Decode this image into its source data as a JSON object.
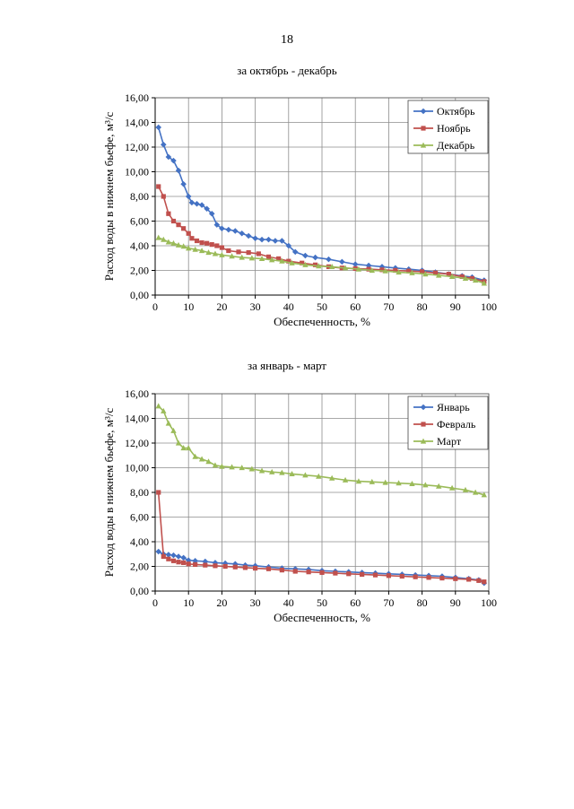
{
  "page": {
    "number": "18"
  },
  "chart_data": [
    {
      "type": "line",
      "title": "за октябрь - декабрь",
      "xlabel": "Обеспеченность, %",
      "ylabel": "Расход воды в нижнем бьефе, м³/с",
      "xlim": [
        0,
        100
      ],
      "ylim": [
        0,
        16
      ],
      "xticks": [
        0,
        10,
        20,
        30,
        40,
        50,
        60,
        70,
        80,
        90,
        100
      ],
      "yticks": [
        "0,00",
        "2,00",
        "4,00",
        "6,00",
        "8,00",
        "10,00",
        "12,00",
        "14,00",
        "16,00"
      ],
      "grid": true,
      "legend_position": "top-right",
      "series": [
        {
          "name": "Октябрь",
          "color": "#4472C4",
          "marker": "diamond",
          "x": [
            1,
            2.5,
            4,
            5.5,
            7,
            8.5,
            10,
            11,
            12.5,
            14,
            15.5,
            17,
            18.5,
            20,
            22,
            24,
            26,
            28,
            30,
            32,
            34,
            36,
            38,
            40,
            42,
            45,
            48,
            52,
            56,
            60,
            64,
            68,
            72,
            76,
            80,
            84,
            88,
            92,
            95,
            98.6
          ],
          "values": [
            13.6,
            12.2,
            11.2,
            10.9,
            10.1,
            9.0,
            8.0,
            7.5,
            7.4,
            7.3,
            7.0,
            6.6,
            5.7,
            5.4,
            5.3,
            5.2,
            5.0,
            4.8,
            4.6,
            4.5,
            4.5,
            4.4,
            4.4,
            4.0,
            3.5,
            3.2,
            3.05,
            2.9,
            2.7,
            2.5,
            2.4,
            2.3,
            2.2,
            2.1,
            2.0,
            1.85,
            1.7,
            1.55,
            1.45,
            1.2
          ]
        },
        {
          "name": "Ноябрь",
          "color": "#C0504D",
          "marker": "square",
          "x": [
            1,
            2.5,
            4,
            5.5,
            7,
            8.5,
            10,
            11,
            12.5,
            14,
            15.5,
            17,
            18.5,
            20,
            22,
            25,
            28,
            31,
            34,
            37,
            40,
            44,
            48,
            52,
            56,
            60,
            64,
            68,
            72,
            76,
            80,
            84,
            88,
            92,
            95,
            98.6
          ],
          "values": [
            8.8,
            8.0,
            6.6,
            6.0,
            5.7,
            5.4,
            5.0,
            4.6,
            4.4,
            4.25,
            4.2,
            4.1,
            4.0,
            3.85,
            3.6,
            3.5,
            3.45,
            3.35,
            3.1,
            2.95,
            2.75,
            2.6,
            2.45,
            2.3,
            2.2,
            2.15,
            2.1,
            2.05,
            2.0,
            1.95,
            1.9,
            1.8,
            1.7,
            1.5,
            1.35,
            1.1
          ]
        },
        {
          "name": "Декабрь",
          "color": "#9BBB59",
          "marker": "triangle",
          "x": [
            1,
            2.5,
            4,
            5.5,
            7,
            8.5,
            10,
            12,
            14,
            16,
            18,
            20,
            23,
            26,
            29,
            32,
            35,
            38,
            41,
            45,
            49,
            53,
            57,
            61,
            65,
            69,
            73,
            77,
            81,
            85,
            89,
            93,
            96,
            98.6
          ],
          "values": [
            4.65,
            4.5,
            4.3,
            4.2,
            4.05,
            3.95,
            3.8,
            3.7,
            3.6,
            3.45,
            3.35,
            3.25,
            3.15,
            3.05,
            3.0,
            2.95,
            2.85,
            2.75,
            2.6,
            2.45,
            2.35,
            2.3,
            2.2,
            2.1,
            2.0,
            1.95,
            1.85,
            1.8,
            1.7,
            1.6,
            1.5,
            1.35,
            1.2,
            0.95
          ]
        }
      ]
    },
    {
      "type": "line",
      "title": "за январь - март",
      "xlabel": "Обеспеченность, %",
      "ylabel": "Расход воды в нижнем бьефе, м³/с",
      "xlim": [
        0,
        100
      ],
      "ylim": [
        0,
        16
      ],
      "xticks": [
        0,
        10,
        20,
        30,
        40,
        50,
        60,
        70,
        80,
        90,
        100
      ],
      "yticks": [
        "0,00",
        "2,00",
        "4,00",
        "6,00",
        "8,00",
        "10,00",
        "12,00",
        "14,00",
        "16,00"
      ],
      "grid": true,
      "legend_position": "top-right",
      "series": [
        {
          "name": "Январь",
          "color": "#4472C4",
          "marker": "diamond",
          "x": [
            1,
            2.5,
            4,
            5.5,
            7,
            8.5,
            10,
            12,
            15,
            18,
            21,
            24,
            27,
            30,
            34,
            38,
            42,
            46,
            50,
            54,
            58,
            62,
            66,
            70,
            74,
            78,
            82,
            86,
            90,
            94,
            97,
            98.6
          ],
          "values": [
            3.2,
            3.0,
            2.95,
            2.9,
            2.8,
            2.7,
            2.5,
            2.45,
            2.4,
            2.3,
            2.25,
            2.2,
            2.1,
            2.05,
            1.95,
            1.85,
            1.8,
            1.75,
            1.65,
            1.6,
            1.55,
            1.5,
            1.45,
            1.4,
            1.35,
            1.3,
            1.25,
            1.2,
            1.1,
            1.0,
            0.9,
            0.65
          ]
        },
        {
          "name": "Февраль",
          "color": "#C0504D",
          "marker": "square",
          "x": [
            1,
            2.5,
            4,
            5.5,
            7,
            8.5,
            10,
            12,
            15,
            18,
            21,
            24,
            27,
            30,
            34,
            38,
            42,
            46,
            50,
            54,
            58,
            62,
            66,
            70,
            74,
            78,
            82,
            86,
            90,
            94,
            97,
            98.6
          ],
          "values": [
            8.0,
            2.8,
            2.6,
            2.45,
            2.35,
            2.3,
            2.2,
            2.15,
            2.1,
            2.05,
            2.0,
            1.95,
            1.9,
            1.85,
            1.8,
            1.7,
            1.6,
            1.55,
            1.5,
            1.45,
            1.4,
            1.35,
            1.3,
            1.25,
            1.2,
            1.15,
            1.1,
            1.05,
            1.0,
            0.95,
            0.85,
            0.75
          ]
        },
        {
          "name": "Март",
          "color": "#9BBB59",
          "marker": "triangle",
          "x": [
            1,
            2.5,
            4,
            5.5,
            7,
            8.5,
            10,
            12,
            14,
            16,
            18,
            20,
            23,
            26,
            29,
            32,
            35,
            38,
            41,
            45,
            49,
            53,
            57,
            61,
            65,
            69,
            73,
            77,
            81,
            85,
            89,
            93,
            96,
            98.6
          ],
          "values": [
            15.0,
            14.6,
            13.6,
            13.0,
            12.0,
            11.6,
            11.6,
            10.9,
            10.7,
            10.5,
            10.2,
            10.1,
            10.05,
            10.0,
            9.9,
            9.75,
            9.65,
            9.6,
            9.5,
            9.4,
            9.3,
            9.15,
            9.0,
            8.9,
            8.85,
            8.8,
            8.75,
            8.7,
            8.6,
            8.5,
            8.35,
            8.2,
            8.0,
            7.8
          ]
        }
      ]
    }
  ]
}
